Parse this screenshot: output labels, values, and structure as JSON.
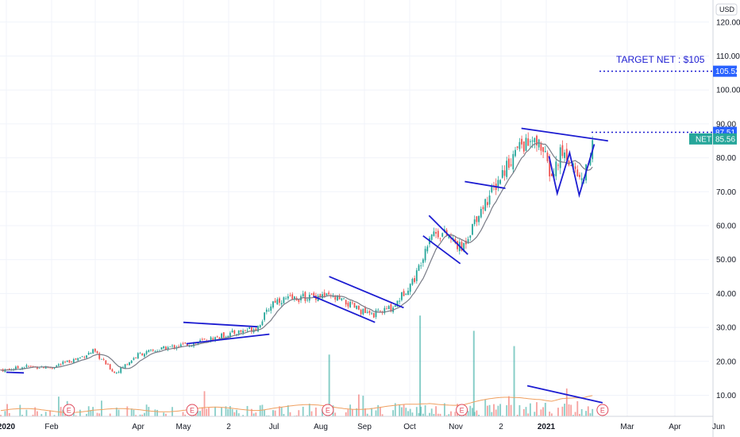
{
  "currency": "USD",
  "colors": {
    "up": "#26a69a",
    "down": "#ef5350",
    "annotation": "#1c1cd1",
    "ma": "#787b86",
    "volume_ma": "#f0a060",
    "label_blue": "#2962ff",
    "label_teal": "#26a69a"
  },
  "annotation_text": "TARGET NET : $105",
  "price_labels": [
    {
      "id": "target",
      "text": "105.52",
      "value": 105.52,
      "style": "blue"
    },
    {
      "id": "resistance",
      "text": "87.51",
      "value": 87.51,
      "style": "blue"
    },
    {
      "id": "last",
      "symbol": "NET",
      "text": "85.56",
      "value": 85.56,
      "style": "teal"
    }
  ],
  "earnings_marker_letter": "E",
  "chart_data": {
    "type": "candlestick",
    "title": "",
    "y_axis_ticks": [
      "10.00",
      "20.00",
      "30.00",
      "40.00",
      "50.00",
      "60.00",
      "70.00",
      "80.00",
      "90.00",
      "100.00",
      "110.00",
      "120.00"
    ],
    "ylim": [
      2,
      126
    ],
    "x_axis_ticks": [
      {
        "label": "2020",
        "bold": true
      },
      {
        "label": "Feb",
        "bold": false
      },
      {
        "label": "Apr",
        "bold": false
      },
      {
        "label": "May",
        "bold": false
      },
      {
        "label": "2",
        "bold": false
      },
      {
        "label": "Jul",
        "bold": false
      },
      {
        "label": "Aug",
        "bold": false
      },
      {
        "label": "Sep",
        "bold": false
      },
      {
        "label": "Oct",
        "bold": false
      },
      {
        "label": "Nov",
        "bold": false
      },
      {
        "label": "2",
        "bold": false
      },
      {
        "label": "2021",
        "bold": true
      },
      {
        "label": "Mar",
        "bold": false
      },
      {
        "label": "Apr",
        "bold": false
      },
      {
        "label": "Jun",
        "bold": false
      }
    ],
    "price_path_approx": [
      {
        "date": "2020-01-01",
        "close": 17.5
      },
      {
        "date": "2020-01-15",
        "close": 18.5
      },
      {
        "date": "2020-02-01",
        "close": 18.2
      },
      {
        "date": "2020-02-20",
        "close": 21.0
      },
      {
        "date": "2020-03-01",
        "close": 23.0
      },
      {
        "date": "2020-03-16",
        "close": 16.5
      },
      {
        "date": "2020-04-01",
        "close": 22.0
      },
      {
        "date": "2020-04-20",
        "close": 24.0
      },
      {
        "date": "2020-05-10",
        "close": 25.5
      },
      {
        "date": "2020-06-01",
        "close": 28.0
      },
      {
        "date": "2020-06-20",
        "close": 30.0
      },
      {
        "date": "2020-07-01",
        "close": 38.0
      },
      {
        "date": "2020-07-15",
        "close": 38.5
      },
      {
        "date": "2020-08-01",
        "close": 39.5
      },
      {
        "date": "2020-08-15",
        "close": 38.0
      },
      {
        "date": "2020-09-05",
        "close": 33.5
      },
      {
        "date": "2020-09-20",
        "close": 36.0
      },
      {
        "date": "2020-10-05",
        "close": 45.0
      },
      {
        "date": "2020-10-15",
        "close": 58.0
      },
      {
        "date": "2020-10-25",
        "close": 57.5
      },
      {
        "date": "2020-11-05",
        "close": 53.0
      },
      {
        "date": "2020-11-15",
        "close": 63.0
      },
      {
        "date": "2020-11-25",
        "close": 70.0
      },
      {
        "date": "2020-12-05",
        "close": 78.0
      },
      {
        "date": "2020-12-15",
        "close": 84.0
      },
      {
        "date": "2020-12-28",
        "close": 84.0
      },
      {
        "date": "2021-01-05",
        "close": 74.0
      },
      {
        "date": "2021-01-12",
        "close": 82.0
      },
      {
        "date": "2021-01-20",
        "close": 78.0
      },
      {
        "date": "2021-01-27",
        "close": 73.0
      },
      {
        "date": "2021-02-05",
        "close": 85.56
      }
    ],
    "volume_peaks_approx": [
      {
        "date": "2020-10-08",
        "value": 33.5
      },
      {
        "date": "2020-11-13",
        "value": 29.0
      },
      {
        "date": "2020-08-07",
        "value": 22.0
      },
      {
        "date": "2020-12-10",
        "value": 24.5
      }
    ]
  }
}
